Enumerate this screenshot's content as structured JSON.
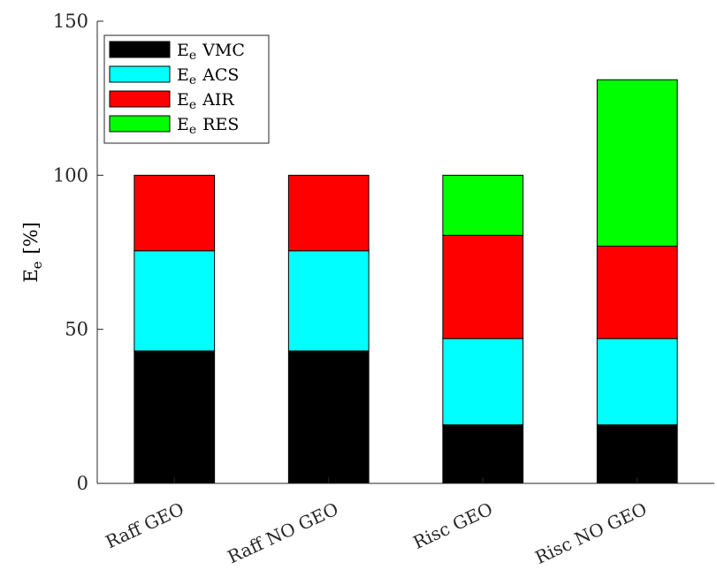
{
  "chart_data": {
    "type": "bar",
    "stacked": true,
    "title": "",
    "xlabel": "",
    "ylabel": "E_e [%]",
    "ylabel_parts": {
      "base": "E",
      "sub": "e",
      "suffix": "[%]"
    },
    "ylim": [
      0,
      150
    ],
    "yticks": [
      0,
      50,
      100,
      150
    ],
    "grid": false,
    "legend_placement": "top-left",
    "categories": [
      "Raff GEO",
      "Raff NO GEO",
      "Risc GEO",
      "Risc NO GEO"
    ],
    "series": [
      {
        "name": "E_e VMC",
        "name_base": "E",
        "name_sub": "e",
        "name_suffix": "VMC",
        "color": "#000000",
        "values": [
          43,
          43,
          19,
          19
        ]
      },
      {
        "name": "E_e ACS",
        "name_base": "E",
        "name_sub": "e",
        "name_suffix": "ACS",
        "color": "#00FFFF",
        "values": [
          32.5,
          32.5,
          28,
          28
        ]
      },
      {
        "name": "E_e AIR",
        "name_base": "E",
        "name_sub": "e",
        "name_suffix": "AIR",
        "color": "#FF0000",
        "values": [
          24.5,
          24.5,
          33.5,
          30
        ]
      },
      {
        "name": "E_e RES",
        "name_base": "E",
        "name_sub": "e",
        "name_suffix": "RES",
        "color": "#00FF00",
        "values": [
          0,
          0,
          19.5,
          54
        ]
      }
    ]
  }
}
